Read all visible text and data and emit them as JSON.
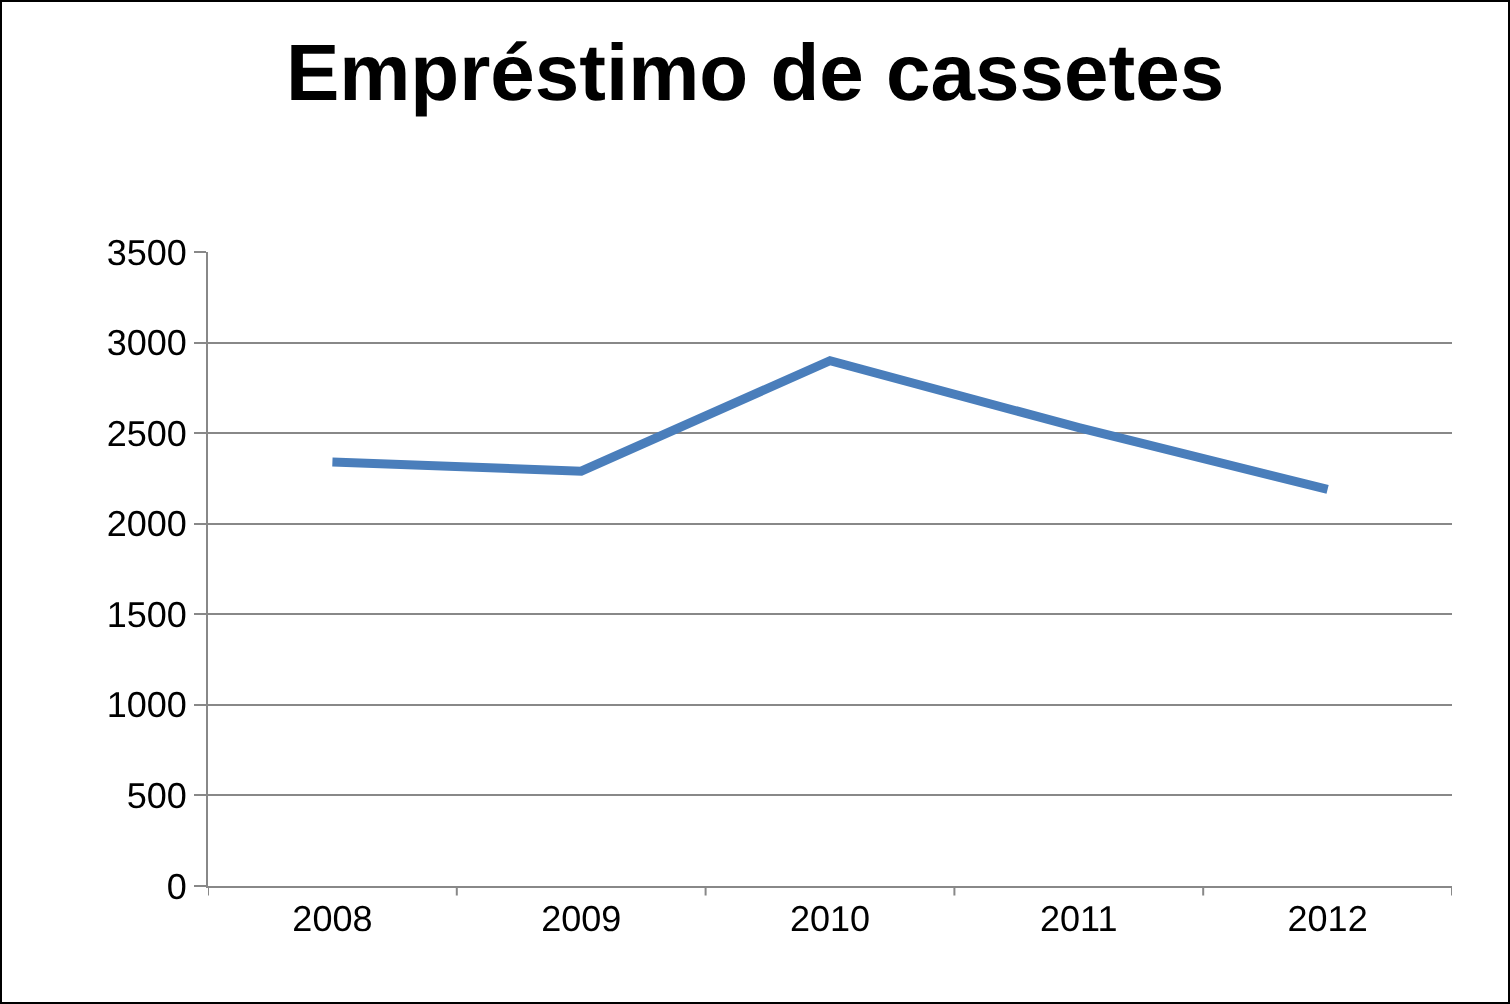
{
  "chart_data": {
    "type": "line",
    "title": "Empréstimo de cassetes",
    "categories": [
      "2008",
      "2009",
      "2010",
      "2011",
      "2012"
    ],
    "series": [
      {
        "color": "#4a7ebb",
        "values": [
          2340,
          2290,
          2900,
          2530,
          2190
        ]
      }
    ],
    "ylim": [
      0,
      3500
    ],
    "yticks": [
      0,
      500,
      1000,
      1500,
      2000,
      2500,
      3000,
      3500
    ],
    "grid": "y",
    "marker": "none",
    "line_style": "solid"
  }
}
